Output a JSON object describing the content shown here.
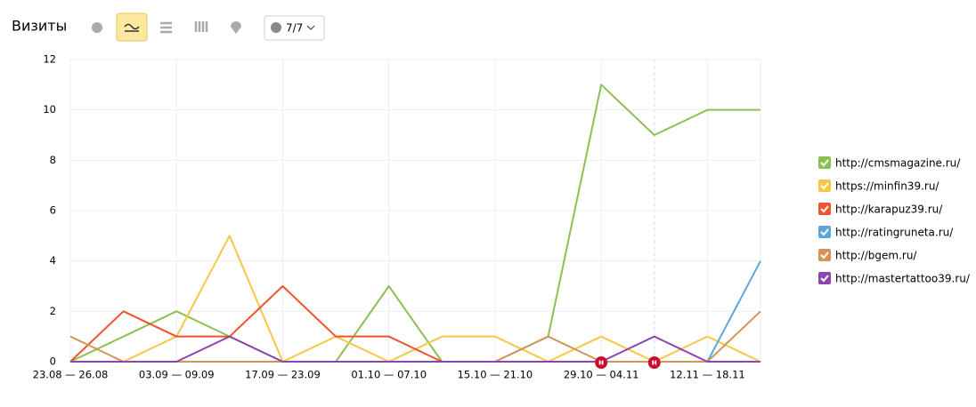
{
  "toolbar": {
    "title": "Визиты",
    "selector_label": "7/7"
  },
  "chart_data": {
    "type": "line",
    "categories": [
      "23.08 — 26.08",
      null,
      "03.09 — 09.09",
      null,
      "17.09 — 23.09",
      null,
      "01.10 — 07.10",
      null,
      "15.10 — 21.10",
      null,
      "29.10 — 04.11",
      null,
      "12.11 — 18.11",
      null
    ],
    "series": [
      {
        "name": "http://cmsmagazine.ru/",
        "color": "#8cc152",
        "values": [
          0,
          1,
          2,
          1,
          0,
          0,
          3,
          0,
          0,
          1,
          11,
          9,
          10,
          10
        ]
      },
      {
        "name": "https://minfin39.ru/",
        "color": "#f6c744",
        "values": [
          0,
          0,
          1,
          5,
          0,
          1,
          0,
          1,
          1,
          0,
          1,
          0,
          1,
          0
        ]
      },
      {
        "name": "http://karapuz39.ru/",
        "color": "#f0522e",
        "values": [
          0,
          2,
          1,
          1,
          3,
          1,
          1,
          0,
          0,
          0,
          0,
          0,
          0,
          0
        ]
      },
      {
        "name": "http://ratingruneta.ru/",
        "color": "#5ba7dc",
        "values": [
          0,
          0,
          0,
          0,
          0,
          0,
          0,
          0,
          0,
          0,
          0,
          0,
          0,
          4
        ]
      },
      {
        "name": "http://bgem.ru/",
        "color": "#d39459",
        "values": [
          1,
          0,
          0,
          0,
          0,
          0,
          0,
          0,
          0,
          1,
          0,
          0,
          0,
          2
        ]
      },
      {
        "name": "http://mastertattoo39.ru/",
        "color": "#8e44ad",
        "values": [
          0,
          0,
          0,
          1,
          0,
          0,
          0,
          0,
          0,
          0,
          0,
          1,
          0,
          0
        ]
      }
    ],
    "ylim": [
      0,
      12
    ],
    "yticks": [
      0,
      2,
      4,
      6,
      8,
      10,
      12
    ],
    "grid": true,
    "annotations": [
      "н",
      "н"
    ]
  }
}
